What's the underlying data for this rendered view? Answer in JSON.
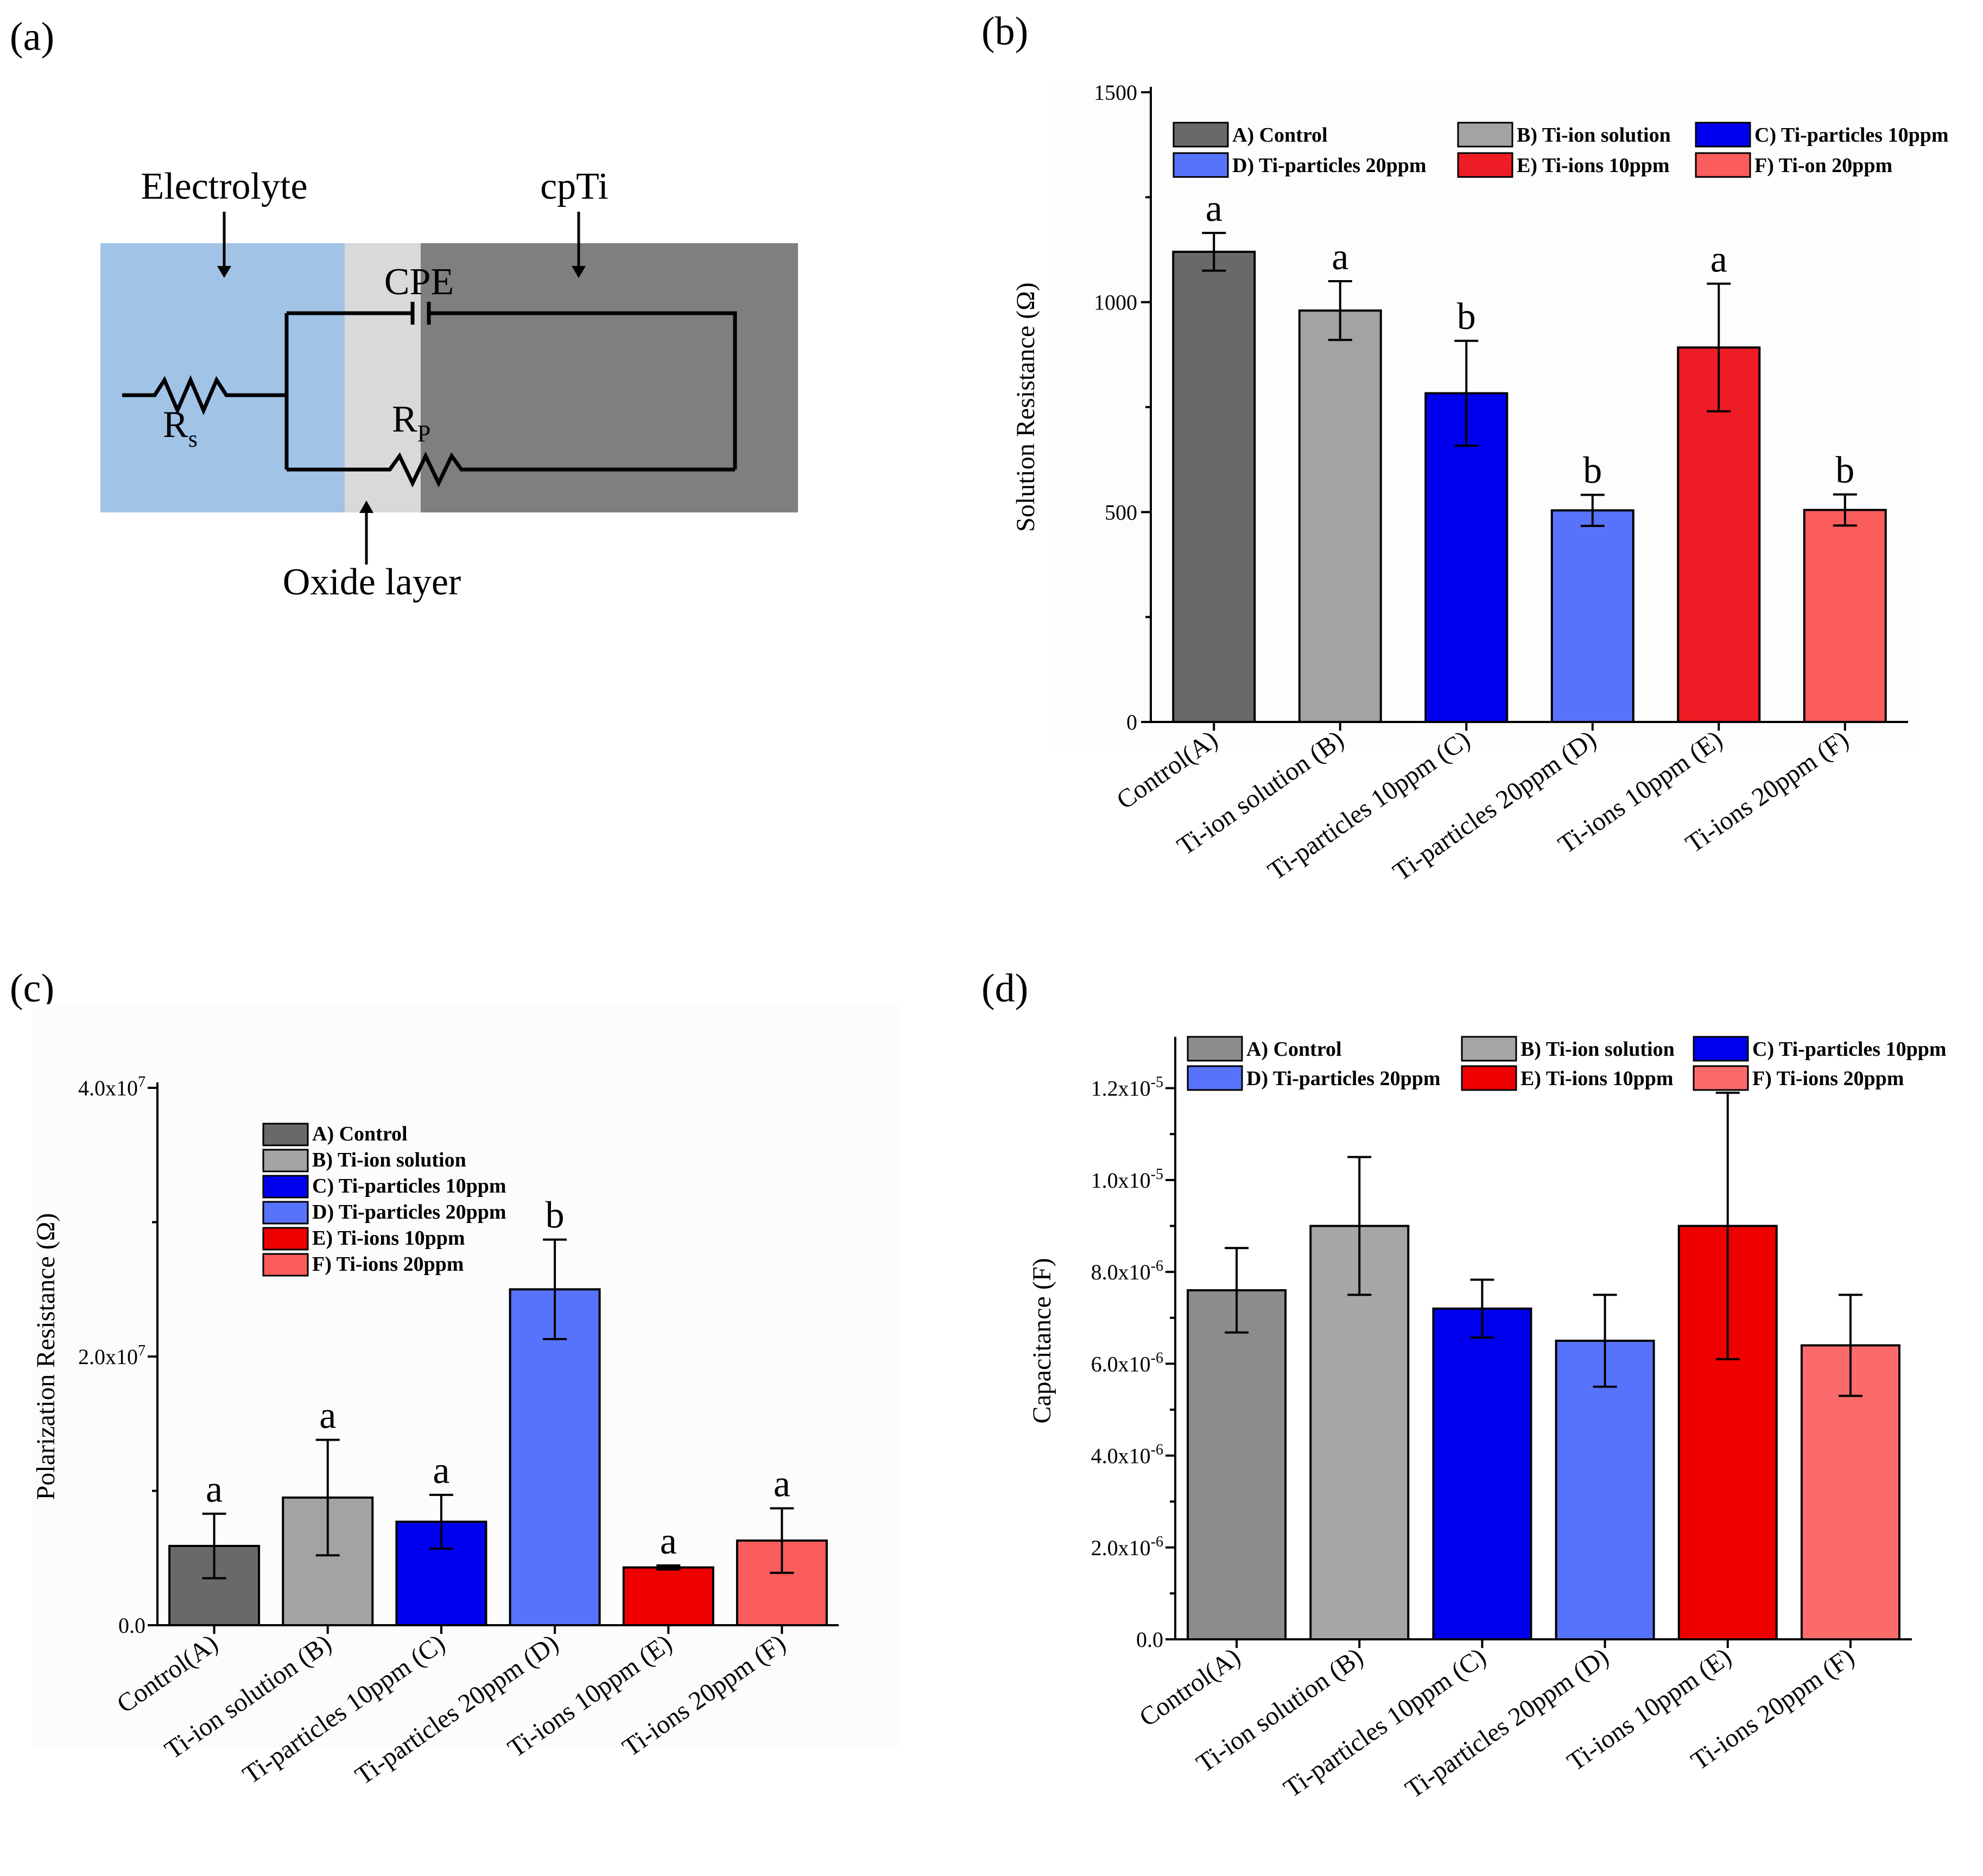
{
  "panels": {
    "a": "(a)",
    "b": "(b)",
    "c": "(c)",
    "d": "(d)"
  },
  "diagram": {
    "electrolyte": "Electrolyte",
    "cpti": "cpTi",
    "cpe": "CPE",
    "rs_main": "R",
    "rs_sub": "s",
    "rp_main": "R",
    "rp_sub": "P",
    "oxide": "Oxide layer",
    "colors": {
      "electrolyte": "#a1c3e6",
      "oxide": "#d9d9d9",
      "metal": "#7f7f7f"
    }
  },
  "chart_data": [
    {
      "id": "b",
      "type": "bar",
      "title": "",
      "xlabel": "",
      "ylabel": "Solution Resistance (Ω)",
      "ylim": [
        0,
        1500
      ],
      "yticks": [
        0,
        500,
        1000,
        1500
      ],
      "ytick_labels": [
        "0",
        "500",
        "1000",
        "1500"
      ],
      "categories": [
        "Control(A)",
        "Ti-ion solution (B)",
        "Ti-particles  10ppm (C)",
        "Ti-particles  20ppm (D)",
        "Ti-ions 10ppm (E)",
        "Ti-ions 20ppm (F)"
      ],
      "values": [
        1120,
        980,
        783,
        504,
        892,
        505
      ],
      "errors": [
        45,
        70,
        125,
        37,
        152,
        37
      ],
      "significance": [
        "a",
        "a",
        "b",
        "b",
        "a",
        "b"
      ],
      "colors": [
        "#696969",
        "#a3a3a3",
        "#0000ee",
        "#5873fb",
        "#ee1c24",
        "#fb5c5c"
      ],
      "legend": [
        "A) Control",
        "B) Ti-ion solution",
        "C) Ti-particles 10ppm",
        "D) Ti-particles 20ppm",
        "E) Ti-ions 10ppm",
        "F) Ti-on 20ppm"
      ]
    },
    {
      "id": "c",
      "type": "bar",
      "title": "",
      "xlabel": "",
      "ylabel": "Polarization Resistance (Ω)",
      "ylim": [
        0,
        40000000
      ],
      "yticks": [
        0,
        20000000,
        40000000
      ],
      "ytick_labels": [
        "0.0",
        "2.0x10",
        "4.0x10"
      ],
      "ytick_exps": [
        "",
        "7",
        "7"
      ],
      "categories": [
        "Control(A)",
        "Ti-ion solution (B)",
        "Ti-particles  10ppm (C)",
        "Ti-particles  20ppm (D)",
        "Ti-ions 10ppm (E)",
        "Ti-ions 20ppm (F)"
      ],
      "values": [
        5900000,
        9500000,
        7700000,
        25000000,
        4300000,
        6300000
      ],
      "errors": [
        2400000,
        4300000,
        2000000,
        3700000,
        150000,
        2400000
      ],
      "significance": [
        "a",
        "a",
        "a",
        "b",
        "a",
        "a"
      ],
      "colors": [
        "#696969",
        "#a3a3a3",
        "#0000ee",
        "#5873fb",
        "#ee0000",
        "#fb5c5c"
      ],
      "legend": [
        "A) Control",
        "B) Ti-ion solution",
        "C) Ti-particles 10ppm",
        "D) Ti-particles 20ppm",
        "E) Ti-ions 10ppm",
        "F) Ti-ions 20ppm"
      ]
    },
    {
      "id": "d",
      "type": "bar",
      "title": "",
      "xlabel": "",
      "ylabel": "Capacitance (F)",
      "ylim": [
        0,
        1.3e-05
      ],
      "yticks": [
        0,
        2e-06,
        4e-06,
        6e-06,
        8e-06,
        1e-05,
        1.2e-05
      ],
      "ytick_labels": [
        "0.0",
        "2.0x10",
        "4.0x10",
        "6.0x10",
        "8.0x10",
        "1.0x10",
        "1.2x10"
      ],
      "ytick_exps": [
        "",
        "-6",
        "-6",
        "-6",
        "-6",
        "-5",
        "-5"
      ],
      "categories": [
        "Control(A)",
        "Ti-ion solution (B)",
        "Ti-particles  10ppm (C)",
        "Ti-particles  20ppm (D)",
        "Ti-ions 10ppm (E)",
        "Ti-ions 20ppm (F)"
      ],
      "values": [
        7.6e-06,
        9e-06,
        7.2e-06,
        6.5e-06,
        9e-06,
        6.4e-06
      ],
      "errors": [
        9.2e-07,
        1.5e-06,
        6.3e-07,
        1e-06,
        2.9e-06,
        1.1e-06
      ],
      "colors": [
        "#8c8c8c",
        "#a6a6a6",
        "#0000ee",
        "#5873fb",
        "#ee0000",
        "#fb6b6b"
      ],
      "legend": [
        "A) Control",
        "B) Ti-ion solution",
        "C) Ti-particles 10ppm",
        "D) Ti-particles 20ppm",
        "E) Ti-ions 10ppm",
        "F) Ti-ions 20ppm"
      ]
    }
  ]
}
